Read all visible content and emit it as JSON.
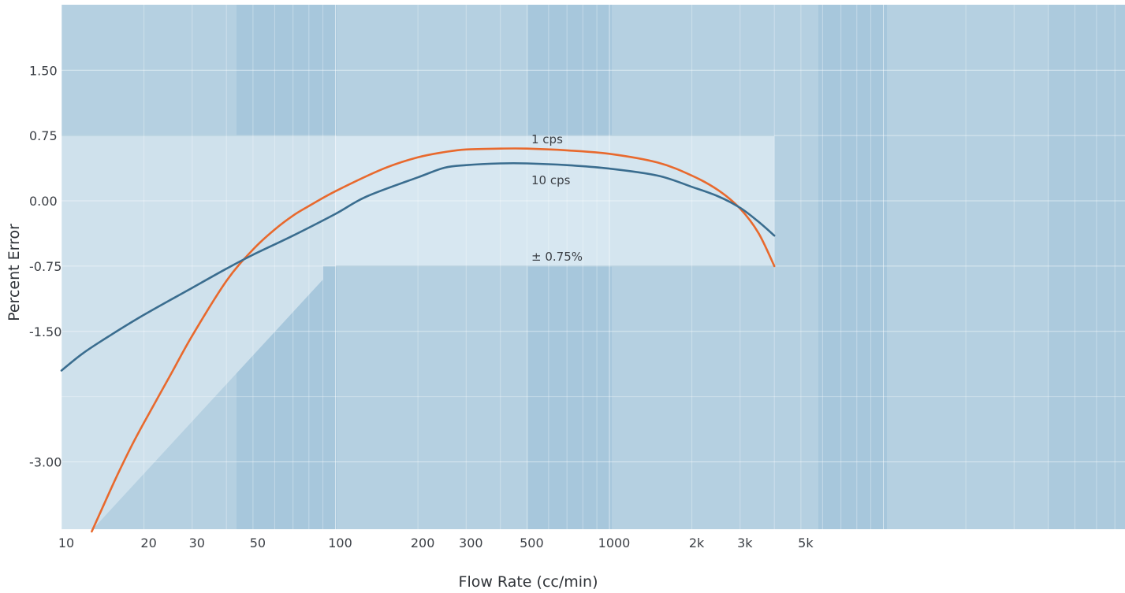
{
  "chart_data": {
    "type": "line",
    "xlabel": "Flow Rate (cc/min)",
    "ylabel": "Percent Error",
    "x_scale": "log",
    "xlim": [
      10,
      100000
    ],
    "ylim": [
      -3.8,
      2.3
    ],
    "x_ticks": [
      {
        "value": 10,
        "label": "10"
      },
      {
        "value": 20,
        "label": "20"
      },
      {
        "value": 30,
        "label": "30"
      },
      {
        "value": 50,
        "label": "50"
      },
      {
        "value": 100,
        "label": "100"
      },
      {
        "value": 200,
        "label": "200"
      },
      {
        "value": 300,
        "label": "300"
      },
      {
        "value": 500,
        "label": "500"
      },
      {
        "value": 1000,
        "label": "1000"
      },
      {
        "value": 2000,
        "label": "2k"
      },
      {
        "value": 3000,
        "label": "3k"
      },
      {
        "value": 5000,
        "label": "5k"
      }
    ],
    "y_ticks": [
      {
        "value": 1.5,
        "label": "1.50"
      },
      {
        "value": 0.75,
        "label": "0.75"
      },
      {
        "value": 0,
        "label": "0.00"
      },
      {
        "value": -0.75,
        "label": "-0.75"
      },
      {
        "value": -1.5,
        "label": "-1.50"
      },
      {
        "value": -3.0,
        "label": "-3.00"
      }
    ],
    "grid": true,
    "tolerance_band": {
      "label": "± 0.75%",
      "x_range": [
        100,
        4000
      ],
      "y_range": [
        -0.75,
        0.75
      ]
    },
    "series": [
      {
        "name": "1 cps",
        "color": "#e8692d",
        "points": [
          [
            12.9,
            -3.8
          ],
          [
            14,
            -3.55
          ],
          [
            16,
            -3.15
          ],
          [
            18,
            -2.82
          ],
          [
            20,
            -2.55
          ],
          [
            25,
            -2.0
          ],
          [
            30,
            -1.55
          ],
          [
            40,
            -0.92
          ],
          [
            50,
            -0.56
          ],
          [
            60,
            -0.33
          ],
          [
            70,
            -0.17
          ],
          [
            80,
            -0.06
          ],
          [
            100,
            0.11
          ],
          [
            150,
            0.37
          ],
          [
            200,
            0.5
          ],
          [
            250,
            0.56
          ],
          [
            300,
            0.59
          ],
          [
            400,
            0.6
          ],
          [
            500,
            0.6
          ],
          [
            700,
            0.58
          ],
          [
            1000,
            0.54
          ],
          [
            1500,
            0.44
          ],
          [
            2000,
            0.29
          ],
          [
            2500,
            0.12
          ],
          [
            3000,
            -0.09
          ],
          [
            3500,
            -0.37
          ],
          [
            4000,
            -0.75
          ]
        ]
      },
      {
        "name": "10 cps",
        "color": "#3a6d8f",
        "points": [
          [
            10,
            -1.95
          ],
          [
            12,
            -1.75
          ],
          [
            15,
            -1.55
          ],
          [
            20,
            -1.31
          ],
          [
            30,
            -1.0
          ],
          [
            40,
            -0.78
          ],
          [
            50,
            -0.62
          ],
          [
            70,
            -0.4
          ],
          [
            100,
            -0.15
          ],
          [
            130,
            0.05
          ],
          [
            200,
            0.27
          ],
          [
            250,
            0.38
          ],
          [
            300,
            0.41
          ],
          [
            400,
            0.43
          ],
          [
            500,
            0.43
          ],
          [
            700,
            0.41
          ],
          [
            1000,
            0.37
          ],
          [
            1500,
            0.29
          ],
          [
            2000,
            0.16
          ],
          [
            2500,
            0.05
          ],
          [
            3000,
            -0.08
          ],
          [
            3500,
            -0.24
          ],
          [
            4000,
            -0.4
          ]
        ]
      }
    ],
    "annotations": [
      "1 cps",
      "10 cps",
      "± 0.75%"
    ]
  }
}
